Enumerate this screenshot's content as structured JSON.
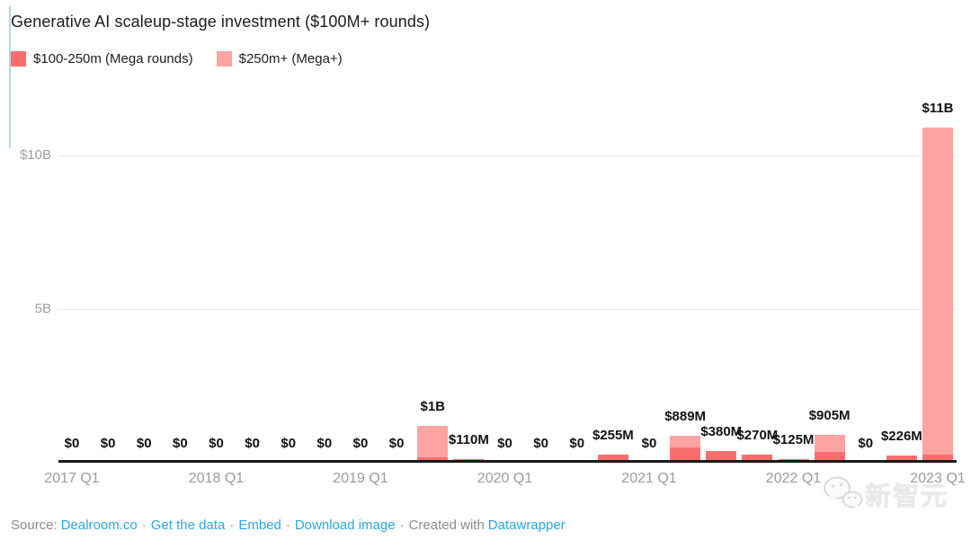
{
  "title": "Generative AI scaleup-stage investment ($100M+ rounds)",
  "legend": [
    {
      "label": "$100-250m (Mega rounds)",
      "color": "#f86e6e"
    },
    {
      "label": "$250m+ (Mega+)",
      "color": "#fda3a2"
    }
  ],
  "chart_data": {
    "type": "bar",
    "stacked": true,
    "title": "Generative AI scaleup-stage investment ($100M+ rounds)",
    "unit": "USD millions",
    "categories": [
      "2017 Q1",
      "2017 Q2",
      "2017 Q3",
      "2017 Q4",
      "2018 Q1",
      "2018 Q2",
      "2018 Q3",
      "2018 Q4",
      "2019 Q1",
      "2019 Q2",
      "2019 Q3",
      "2019 Q4",
      "2020 Q1",
      "2020 Q2",
      "2020 Q3",
      "2020 Q4",
      "2021 Q1",
      "2021 Q2",
      "2021 Q3",
      "2021 Q4",
      "2022 Q1",
      "2022 Q2",
      "2022 Q3",
      "2022 Q4",
      "2023 Q1"
    ],
    "series": [
      {
        "name": "$100-250m (Mega rounds)",
        "color": "#f86e6e",
        "values": [
          0,
          0,
          0,
          0,
          0,
          0,
          0,
          0,
          0,
          0,
          170,
          110,
          0,
          0,
          0,
          255,
          0,
          500,
          380,
          270,
          125,
          350,
          0,
          226,
          250
        ]
      },
      {
        "name": "$250m+ (Mega+)",
        "color": "#fda3a2",
        "values": [
          0,
          0,
          0,
          0,
          0,
          0,
          0,
          0,
          0,
          0,
          1030,
          0,
          0,
          0,
          0,
          0,
          0,
          389,
          0,
          0,
          0,
          555,
          0,
          0,
          10650
        ]
      }
    ],
    "bar_labels": [
      "$0",
      "$0",
      "$0",
      "$0",
      "$0",
      "$0",
      "$0",
      "$0",
      "$0",
      "$0",
      "$1B",
      "$110M",
      "$0",
      "$0",
      "$0",
      "$255M",
      "$0",
      "$889M",
      "$380M",
      "$270M",
      "$125M",
      "$905M",
      "$0",
      "$226M",
      "$11B"
    ],
    "x_tick_labels": [
      "2017 Q1",
      "2018 Q1",
      "2019 Q1",
      "2020 Q1",
      "2021 Q1",
      "2022 Q1",
      "2023 Q1"
    ],
    "y_ticks": [
      {
        "label": "$10B",
        "value": 10000
      },
      {
        "label": "5B",
        "value": 5000
      }
    ],
    "ylim": [
      0,
      11500
    ],
    "grid": "horizontal",
    "legend_position": "top-left"
  },
  "footer": {
    "source_label": "Source:",
    "link_dealroom": "Dealroom.co",
    "separator": "·",
    "link_get_data": "Get the data",
    "link_embed": "Embed",
    "link_download": "Download image",
    "created_with": "Created with",
    "link_datawrapper": "Datawrapper",
    "link_color": "#29a7e1"
  },
  "watermark": {
    "text": "新智元"
  }
}
